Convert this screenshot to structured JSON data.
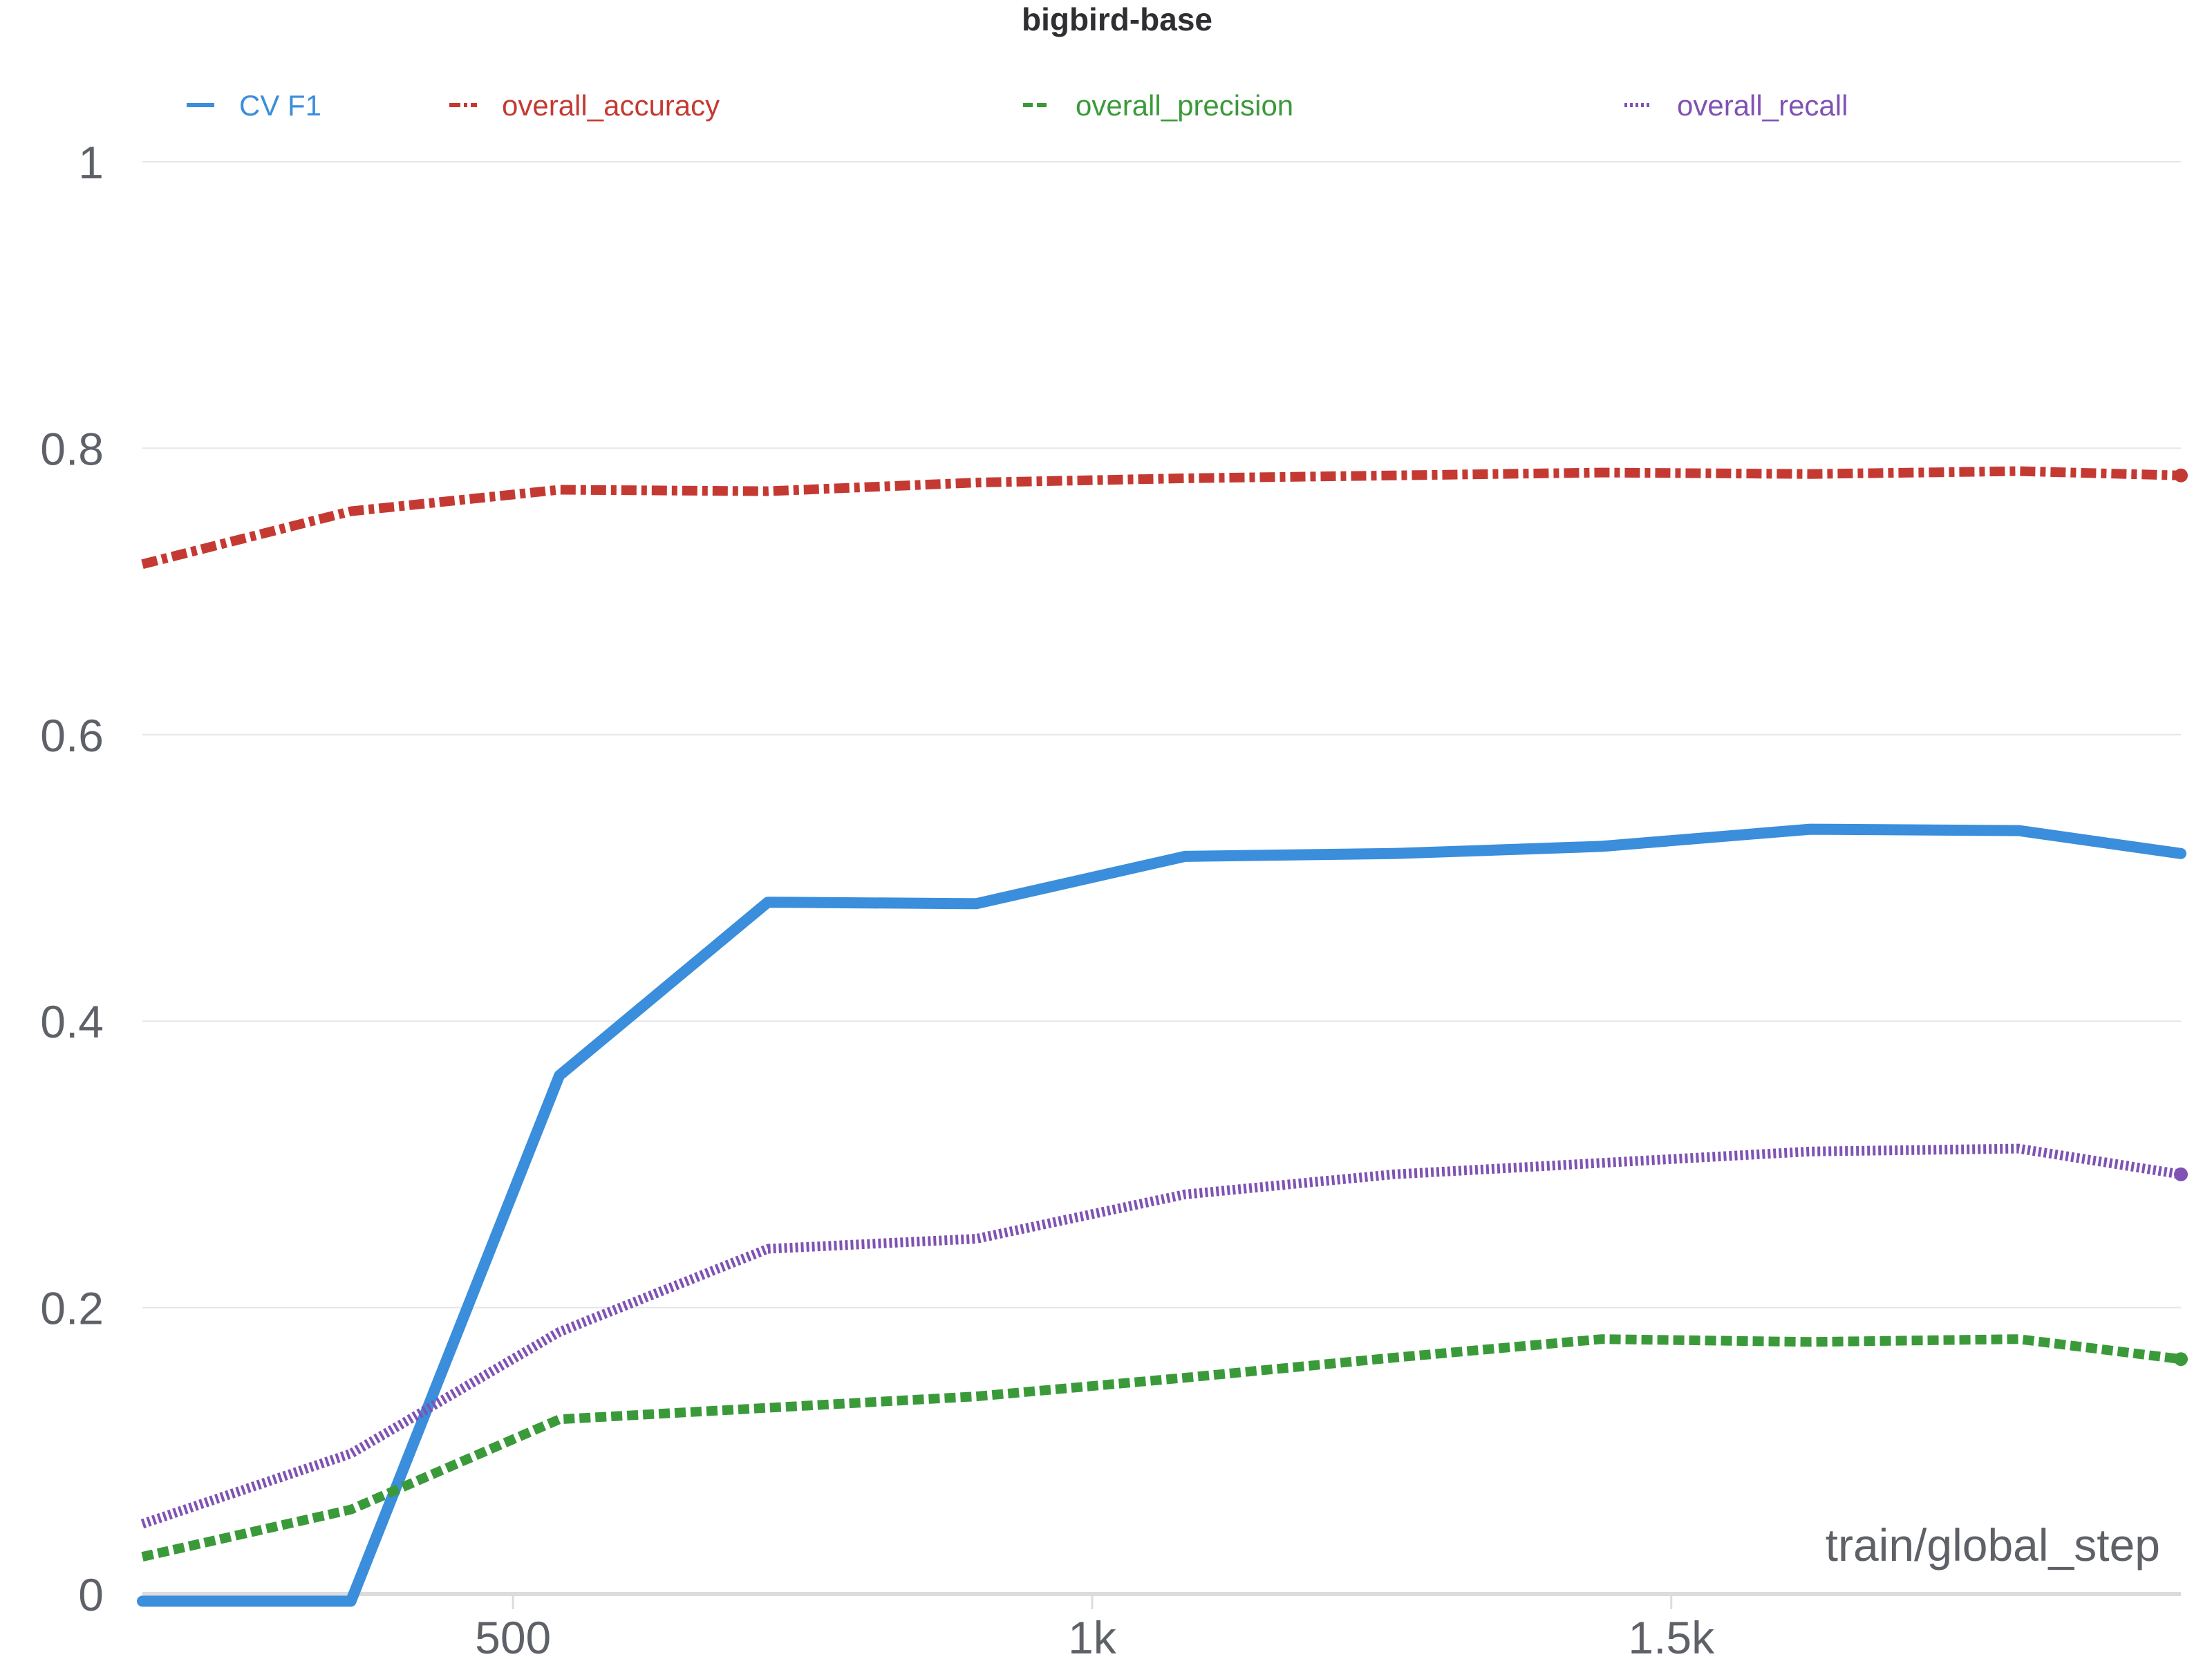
{
  "chart_data": {
    "type": "line",
    "title": "bigbird-base",
    "xlabel": "train/global_step",
    "ylabel": "",
    "xlim": [
      180,
      1940
    ],
    "ylim": [
      0,
      1
    ],
    "x_ticks": [
      500,
      1000,
      1500
    ],
    "x_tick_labels": [
      "500",
      "1k",
      "1.5k"
    ],
    "y_ticks": [
      0,
      0.2,
      0.4,
      0.6,
      0.8,
      1
    ],
    "y_tick_labels": [
      "0",
      "0.2",
      "0.4",
      "0.6",
      "0.8",
      "1"
    ],
    "grid": true,
    "legend_position": "top",
    "series": [
      {
        "name": "CV F1",
        "color": "#3a8edb",
        "style": "solid",
        "x": [
          180,
          360,
          540,
          720,
          900,
          1080,
          1260,
          1440,
          1620,
          1800,
          1940
        ],
        "y": [
          -0.005,
          -0.005,
          0.362,
          0.483,
          0.482,
          0.515,
          0.517,
          0.522,
          0.534,
          0.533,
          0.517
        ]
      },
      {
        "name": "overall_accuracy",
        "color": "#c43a33",
        "style": "dash-dot",
        "x": [
          180,
          360,
          540,
          720,
          900,
          1080,
          1260,
          1440,
          1620,
          1800,
          1940
        ],
        "y": [
          0.719,
          0.756,
          0.771,
          0.77,
          0.776,
          0.779,
          0.781,
          0.783,
          0.782,
          0.784,
          0.781
        ]
      },
      {
        "name": "overall_precision",
        "color": "#3a9a3a",
        "style": "dashed",
        "x": [
          180,
          360,
          540,
          720,
          900,
          1080,
          1260,
          1440,
          1620,
          1800,
          1940
        ],
        "y": [
          0.026,
          0.059,
          0.122,
          0.13,
          0.138,
          0.151,
          0.165,
          0.178,
          0.176,
          0.178,
          0.164
        ]
      },
      {
        "name": "overall_recall",
        "color": "#7f52b3",
        "style": "dotted",
        "x": [
          180,
          360,
          540,
          720,
          900,
          1080,
          1260,
          1440,
          1620,
          1800,
          1940
        ],
        "y": [
          0.049,
          0.098,
          0.183,
          0.241,
          0.248,
          0.279,
          0.293,
          0.301,
          0.309,
          0.311,
          0.293
        ]
      }
    ]
  }
}
